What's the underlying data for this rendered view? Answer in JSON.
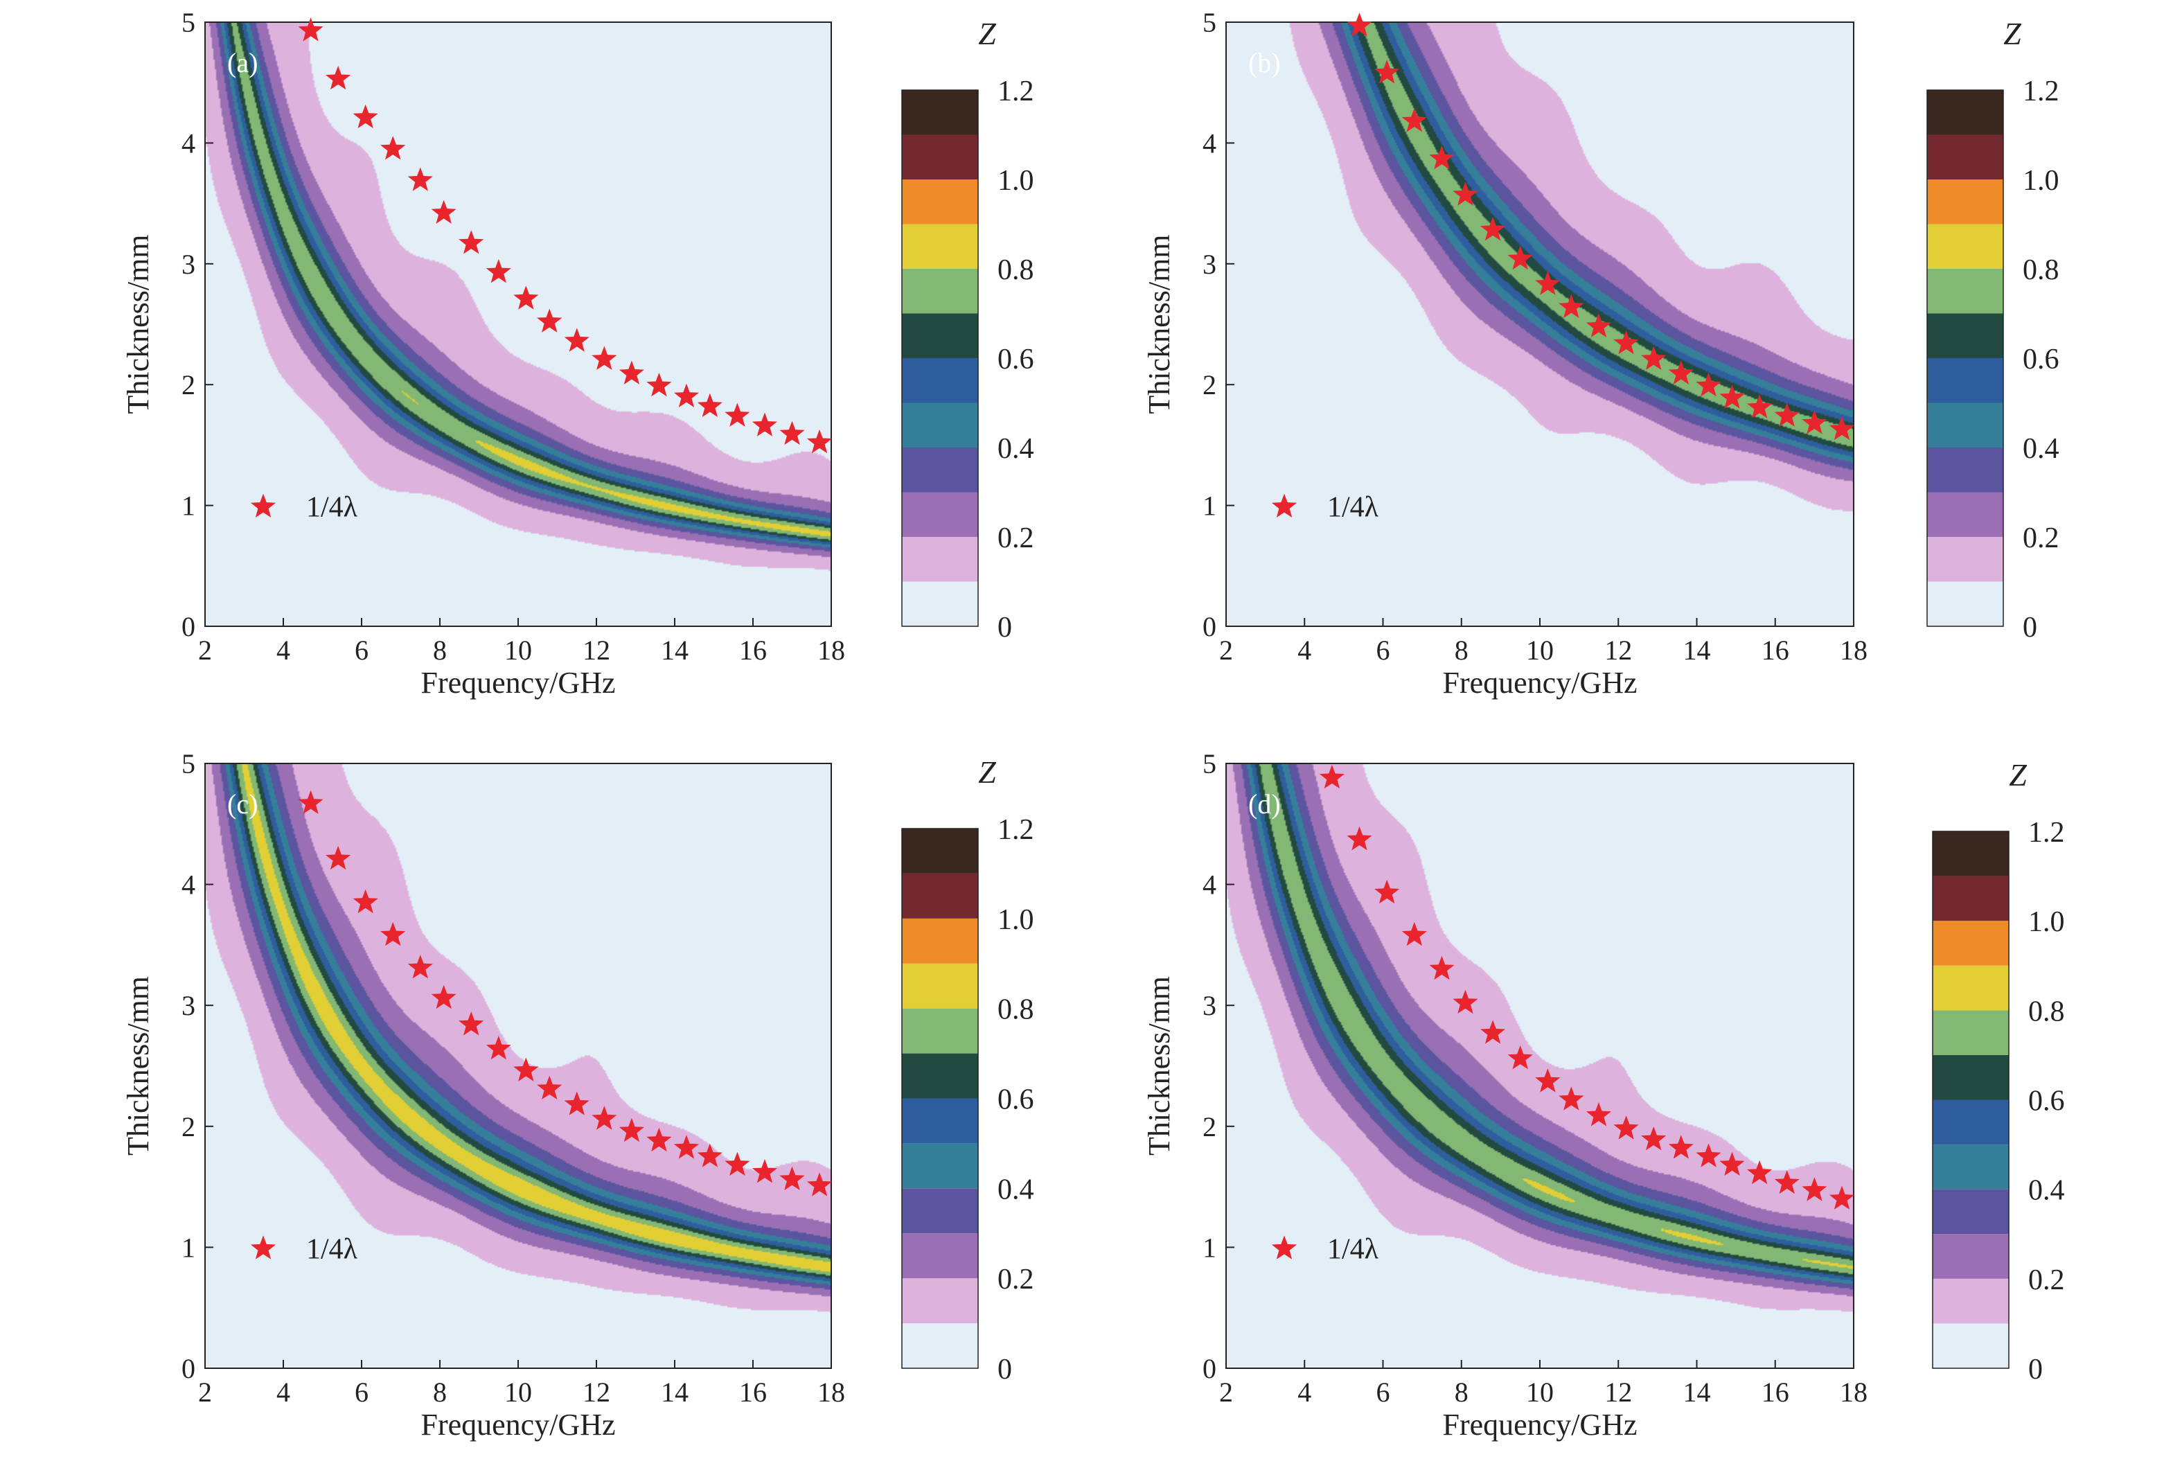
{
  "colors": {
    "levels": [
      "#e3eef7",
      "#ddb2dc",
      "#9a6fb4",
      "#5b55a0",
      "#367f9a",
      "#2f5e9e",
      "#224a40",
      "#82b774",
      "#e2cf35",
      "#ee8c2a",
      "#74292f",
      "#3a2820"
    ],
    "star": "#e8252c",
    "axis": "#222222"
  },
  "chart_data": [
    {
      "panel": "(a)",
      "type": "heatmap",
      "xlabel": "Frequency/GHz",
      "ylabel": "Thickness/mm",
      "xlim": [
        2,
        18
      ],
      "ylim": [
        0,
        5
      ],
      "xticks": [
        "2",
        "4",
        "6",
        "8",
        "10",
        "12",
        "14",
        "16",
        "18"
      ],
      "yticks": [
        "0",
        "1",
        "2",
        "3",
        "4",
        "5"
      ],
      "colorbar": {
        "title": "Z",
        "ticks": [
          "0",
          "0.2",
          "0.4",
          "0.6",
          "0.8",
          "1.0",
          "1.2"
        ],
        "levels": [
          0,
          0.1,
          0.2,
          0.3,
          0.4,
          0.5,
          0.6,
          0.7,
          0.8,
          0.9,
          1.0,
          1.1,
          1.2
        ]
      },
      "legend": {
        "label": "1/4λ",
        "marker": "star",
        "position": "lower-left"
      },
      "model": {
        "A": 13.7,
        "z0": 0.3,
        "w": 0.48,
        "p0": 0.74,
        "ramp": 0.08,
        "floor": 0.045
      },
      "quarter_wave": {
        "freq": [
          4.7,
          5.4,
          6.1,
          6.8,
          7.5,
          8.1,
          8.8,
          9.5,
          10.2,
          10.8,
          11.5,
          12.2,
          12.9,
          13.6,
          14.3,
          14.9,
          15.6,
          16.3,
          17.0,
          17.7
        ],
        "thickness": [
          4.93,
          4.53,
          4.21,
          3.95,
          3.69,
          3.42,
          3.17,
          2.93,
          2.71,
          2.52,
          2.36,
          2.21,
          2.09,
          1.99,
          1.9,
          1.82,
          1.74,
          1.66,
          1.59,
          1.52
        ]
      }
    },
    {
      "panel": "(b)",
      "type": "heatmap",
      "xlabel": "Frequency/GHz",
      "ylabel": "Thickness/mm",
      "xlim": [
        2,
        18
      ],
      "ylim": [
        0,
        5
      ],
      "xticks": [
        "2",
        "4",
        "6",
        "8",
        "10",
        "12",
        "14",
        "16",
        "18"
      ],
      "yticks": [
        "0",
        "1",
        "2",
        "3",
        "4",
        "5"
      ],
      "colorbar": {
        "title": "Z",
        "ticks": [
          "0",
          "0.2",
          "0.4",
          "0.6",
          "0.8",
          "1.0",
          "1.2"
        ],
        "levels": [
          0,
          0.1,
          0.2,
          0.3,
          0.4,
          0.5,
          0.6,
          0.7,
          0.8,
          0.9,
          1.0,
          1.1,
          1.2
        ]
      },
      "legend": {
        "label": "1/4λ",
        "marker": "star",
        "position": "lower-left"
      },
      "model": {
        "A": 28.0,
        "z0": 0.26,
        "w": 0.5,
        "p0": 0.72,
        "ramp": 0.04,
        "floor": 0.045
      },
      "quarter_wave": {
        "freq": [
          5.4,
          6.1,
          6.8,
          7.5,
          8.1,
          8.8,
          9.5,
          10.2,
          10.8,
          11.5,
          12.2,
          12.9,
          13.6,
          14.3,
          14.9,
          15.6,
          16.3,
          17.0,
          17.7
        ],
        "thickness": [
          4.97,
          4.58,
          4.18,
          3.87,
          3.57,
          3.28,
          3.04,
          2.83,
          2.64,
          2.48,
          2.34,
          2.21,
          2.09,
          1.99,
          1.89,
          1.81,
          1.74,
          1.68,
          1.63
        ]
      }
    },
    {
      "panel": "(c)",
      "type": "heatmap",
      "xlabel": "Frequency/GHz",
      "ylabel": "Thickness/mm",
      "xlim": [
        2,
        18
      ],
      "ylim": [
        0,
        5
      ],
      "xticks": [
        "2",
        "4",
        "6",
        "8",
        "10",
        "12",
        "14",
        "16",
        "18"
      ],
      "yticks": [
        "0",
        "1",
        "2",
        "3",
        "4",
        "5"
      ],
      "colorbar": {
        "title": "Z",
        "ticks": [
          "0",
          "0.2",
          "0.4",
          "0.6",
          "0.8",
          "1.0",
          "1.2"
        ],
        "levels": [
          0,
          0.1,
          0.2,
          0.3,
          0.4,
          0.5,
          0.6,
          0.7,
          0.8,
          0.9,
          1.0,
          1.1,
          1.2
        ]
      },
      "legend": {
        "label": "1/4λ",
        "marker": "star",
        "position": "lower-left"
      },
      "model": {
        "A": 15.0,
        "z0": 0.32,
        "w": 0.52,
        "p0": 0.8,
        "ramp": 0.03,
        "floor": 0.045
      },
      "quarter_wave": {
        "freq": [
          4.7,
          5.4,
          6.1,
          6.8,
          7.5,
          8.1,
          8.8,
          9.5,
          10.2,
          10.8,
          11.5,
          12.2,
          12.9,
          13.6,
          14.3,
          14.9,
          15.6,
          16.3,
          17.0,
          17.7
        ],
        "thickness": [
          4.67,
          4.21,
          3.85,
          3.58,
          3.31,
          3.06,
          2.84,
          2.64,
          2.46,
          2.31,
          2.18,
          2.06,
          1.96,
          1.88,
          1.82,
          1.75,
          1.68,
          1.62,
          1.56,
          1.51
        ]
      }
    },
    {
      "panel": "(d)",
      "type": "heatmap",
      "xlabel": "Frequency/GHz",
      "ylabel": "Thickness/mm",
      "xlim": [
        2,
        18
      ],
      "ylim": [
        0,
        5
      ],
      "xticks": [
        "2",
        "4",
        "6",
        "8",
        "10",
        "12",
        "14",
        "16",
        "18"
      ],
      "yticks": [
        "0",
        "1",
        "2",
        "3",
        "4",
        "5"
      ],
      "colorbar": {
        "title": "Z",
        "ticks": [
          "0",
          "0.2",
          "0.4",
          "0.6",
          "0.8",
          "1.0",
          "1.2"
        ],
        "levels": [
          0,
          0.1,
          0.2,
          0.3,
          0.4,
          0.5,
          0.6,
          0.7,
          0.8,
          0.9,
          1.0,
          1.1,
          1.2
        ]
      },
      "legend": {
        "label": "1/4λ",
        "marker": "star",
        "position": "lower-left"
      },
      "model": {
        "A": 15.0,
        "z0": 0.36,
        "w": 0.48,
        "p0": 0.74,
        "ramp": 0.03,
        "floor": 0.045
      },
      "quarter_wave": {
        "freq": [
          4.7,
          5.4,
          6.1,
          6.8,
          7.5,
          8.1,
          8.8,
          9.5,
          10.2,
          10.8,
          11.5,
          12.2,
          12.9,
          13.6,
          14.3,
          14.9,
          15.6,
          16.3,
          17.0,
          17.7
        ],
        "thickness": [
          4.88,
          4.37,
          3.93,
          3.58,
          3.3,
          3.02,
          2.77,
          2.56,
          2.37,
          2.22,
          2.09,
          1.98,
          1.89,
          1.82,
          1.75,
          1.68,
          1.61,
          1.53,
          1.47,
          1.4
        ]
      }
    }
  ]
}
